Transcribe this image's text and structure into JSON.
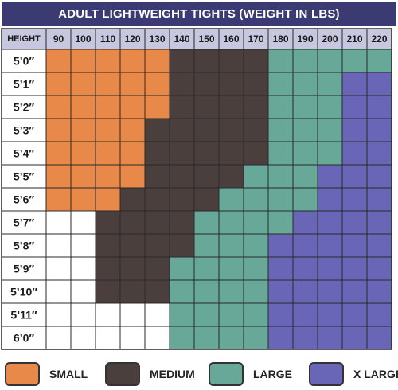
{
  "chart_data": {
    "type": "table",
    "title": "ADULT LIGHTWEIGHT TIGHTS (WEIGHT IN LBS)",
    "corner_header": "HEIGHT",
    "weights": [
      "90",
      "100",
      "110",
      "120",
      "130",
      "140",
      "150",
      "160",
      "170",
      "180",
      "190",
      "200",
      "210",
      "220"
    ],
    "heights": [
      "5’0″",
      "5’1″",
      "5’2″",
      "5’3″",
      "5’4″",
      "5’5″",
      "5’6″",
      "5’7″",
      "5’8″",
      "5’9″",
      "5’10″",
      "5’11″",
      "6’0″"
    ],
    "grid": [
      [
        "S",
        "S",
        "S",
        "S",
        "S",
        "M",
        "M",
        "M",
        "M",
        "L",
        "L",
        "L",
        "L",
        "L"
      ],
      [
        "S",
        "S",
        "S",
        "S",
        "S",
        "M",
        "M",
        "M",
        "M",
        "L",
        "L",
        "L",
        "XL",
        "XL"
      ],
      [
        "S",
        "S",
        "S",
        "S",
        "S",
        "M",
        "M",
        "M",
        "M",
        "L",
        "L",
        "L",
        "XL",
        "XL"
      ],
      [
        "S",
        "S",
        "S",
        "S",
        "M",
        "M",
        "M",
        "M",
        "M",
        "L",
        "L",
        "L",
        "XL",
        "XL"
      ],
      [
        "S",
        "S",
        "S",
        "S",
        "M",
        "M",
        "M",
        "M",
        "M",
        "L",
        "L",
        "L",
        "XL",
        "XL"
      ],
      [
        "S",
        "S",
        "S",
        "S",
        "M",
        "M",
        "M",
        "M",
        "L",
        "L",
        "L",
        "XL",
        "XL",
        "XL"
      ],
      [
        "S",
        "S",
        "S",
        "M",
        "M",
        "M",
        "M",
        "L",
        "L",
        "L",
        "L",
        "XL",
        "XL",
        "XL"
      ],
      [
        "",
        "",
        "M",
        "M",
        "M",
        "M",
        "L",
        "L",
        "L",
        "L",
        "XL",
        "XL",
        "XL",
        "XL"
      ],
      [
        "",
        "",
        "M",
        "M",
        "M",
        "M",
        "L",
        "L",
        "L",
        "XL",
        "XL",
        "XL",
        "XL",
        "XL"
      ],
      [
        "",
        "",
        "M",
        "M",
        "M",
        "L",
        "L",
        "L",
        "L",
        "XL",
        "XL",
        "XL",
        "XL",
        "XL"
      ],
      [
        "",
        "",
        "M",
        "M",
        "M",
        "L",
        "L",
        "L",
        "L",
        "XL",
        "XL",
        "XL",
        "XL",
        "XL"
      ],
      [
        "",
        "",
        "",
        "",
        "",
        "L",
        "L",
        "L",
        "L",
        "XL",
        "XL",
        "XL",
        "XL",
        "XL"
      ],
      [
        "",
        "",
        "",
        "",
        "",
        "L",
        "L",
        "L",
        "L",
        "XL",
        "XL",
        "XL",
        "XL",
        "XL"
      ]
    ],
    "sizes": {
      "S": {
        "label": "SMALL",
        "color": "#e8894a"
      },
      "M": {
        "label": "MEDIUM",
        "color": "#4b3f3d"
      },
      "L": {
        "label": "LARGE",
        "color": "#67a899"
      },
      "XL": {
        "label": "X LARGE",
        "color": "#6a66b7"
      }
    },
    "legend_order": [
      "S",
      "M",
      "L",
      "XL"
    ],
    "header_color": "#c7c7df",
    "title_color": "#3b3a72",
    "empty_color": "#ffffff",
    "grid_line_color": "#2a2a2a"
  }
}
